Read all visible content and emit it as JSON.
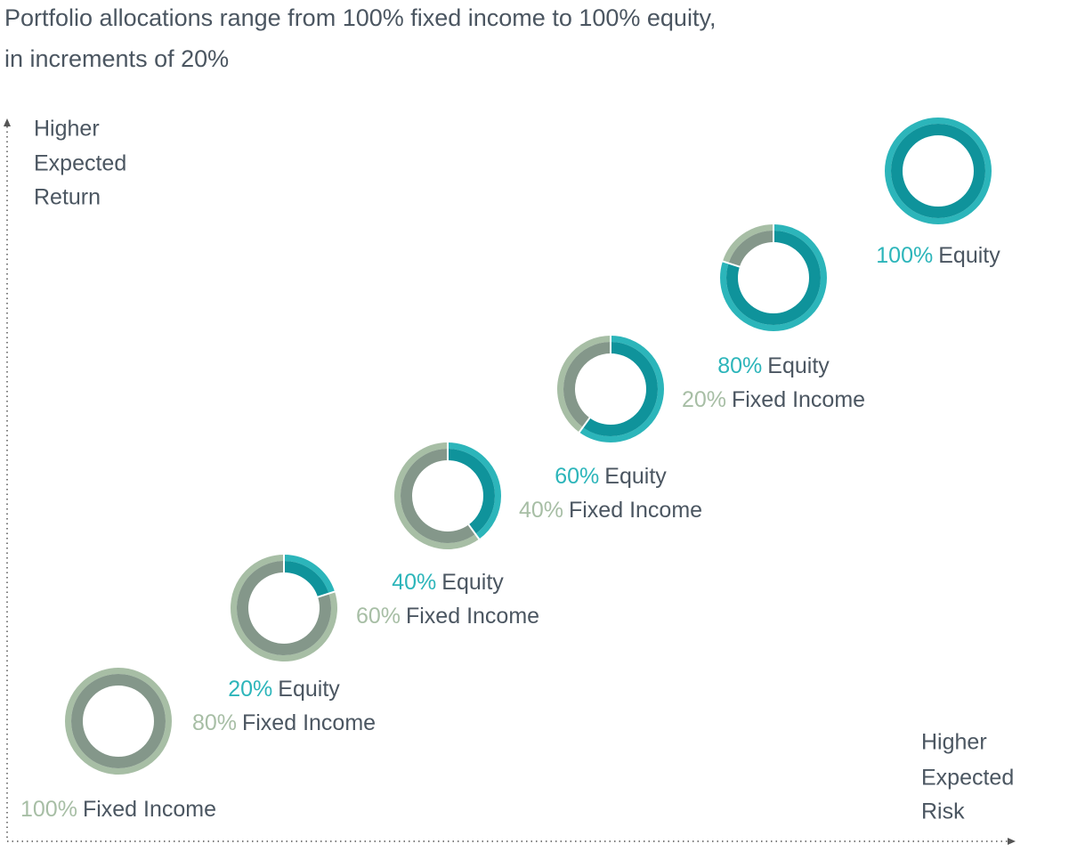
{
  "title": [
    "Portfolio allocations range from 100% fixed income to 100% equity,",
    "in increments of 20%"
  ],
  "y_axis_label": [
    "Higher",
    "Expected",
    "Return"
  ],
  "x_axis_label": [
    "Higher",
    "Expected",
    "Risk"
  ],
  "chart_data": [
    {
      "type": "donut",
      "categories": [
        "Fixed Income"
      ],
      "values": [
        100
      ],
      "value_labels": [
        "100%"
      ],
      "colors": [
        "#a7bea5"
      ],
      "inner_colors": [
        "#84978a"
      ]
    },
    {
      "type": "donut",
      "categories": [
        "Equity",
        "Fixed Income"
      ],
      "values": [
        20,
        80
      ],
      "value_labels": [
        "20%",
        "80%"
      ],
      "colors": [
        "#2cb5ba",
        "#a7bea5"
      ],
      "inner_colors": [
        "#0f939b",
        "#84978a"
      ]
    },
    {
      "type": "donut",
      "categories": [
        "Equity",
        "Fixed Income"
      ],
      "values": [
        40,
        60
      ],
      "value_labels": [
        "40%",
        "60%"
      ],
      "colors": [
        "#2cb5ba",
        "#a7bea5"
      ],
      "inner_colors": [
        "#0f939b",
        "#84978a"
      ]
    },
    {
      "type": "donut",
      "categories": [
        "Equity",
        "Fixed Income"
      ],
      "values": [
        60,
        40
      ],
      "value_labels": [
        "60%",
        "40%"
      ],
      "colors": [
        "#2cb5ba",
        "#a7bea5"
      ],
      "inner_colors": [
        "#0f939b",
        "#84978a"
      ]
    },
    {
      "type": "donut",
      "categories": [
        "Equity",
        "Fixed Income"
      ],
      "values": [
        80,
        20
      ],
      "value_labels": [
        "80%",
        "20%"
      ],
      "colors": [
        "#2cb5ba",
        "#a7bea5"
      ],
      "inner_colors": [
        "#0f939b",
        "#84978a"
      ]
    },
    {
      "type": "donut",
      "categories": [
        "Equity"
      ],
      "values": [
        100
      ],
      "value_labels": [
        "100%"
      ],
      "colors": [
        "#2cb5ba"
      ],
      "inner_colors": [
        "#0f939b"
      ]
    }
  ]
}
